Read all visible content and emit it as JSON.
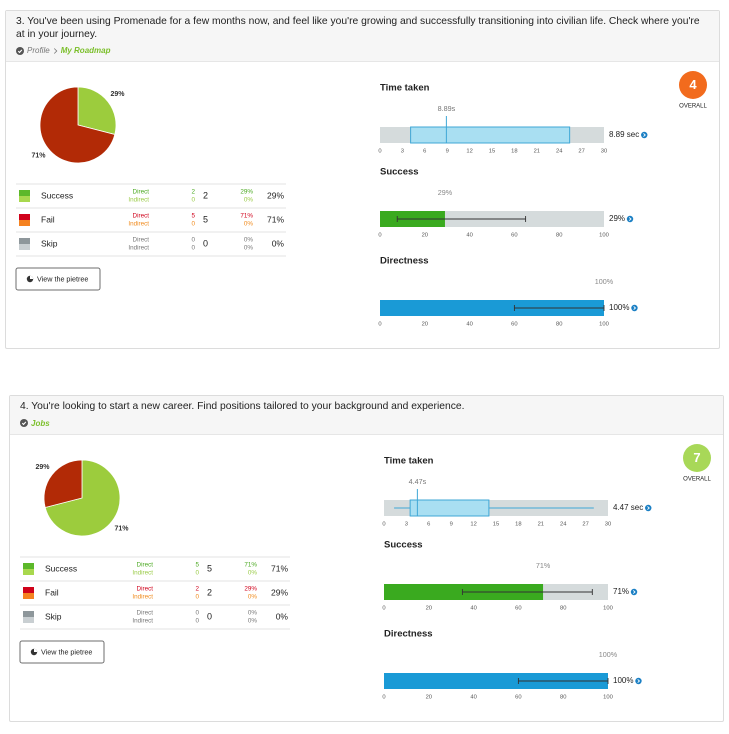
{
  "tasks": [
    {
      "question": "3. You've been using Promenade for a few months now, and feel like you're growing and successfully transitioning into civilian life. Check where you're at in your journey.",
      "breadcrumb": [
        "Profile",
        "My Roadmap"
      ],
      "pie": {
        "values": [
          29,
          71
        ],
        "value_labels": [
          "29%",
          "71%"
        ],
        "colors": [
          "#9ccc3d",
          "#b22a06"
        ]
      },
      "table": [
        {
          "name": "Success",
          "colors": [
            "#5cb82a",
            "#a8d84e"
          ],
          "text_colors": [
            "#4aa820",
            "#9acb47"
          ],
          "direct_label": "Direct",
          "indirect_label": "Indirect",
          "direct": 2,
          "indirect": 0,
          "total": 2,
          "direct_pct": "29%",
          "indirect_pct": "0%",
          "total_pct": "29%"
        },
        {
          "name": "Fail",
          "colors": [
            "#d0021b",
            "#f58220"
          ],
          "text_colors": [
            "#d0021b",
            "#f08a1c"
          ],
          "direct_label": "Direct",
          "indirect_label": "Indirect",
          "direct": 5,
          "indirect": 0,
          "total": 5,
          "direct_pct": "71%",
          "indirect_pct": "0%",
          "total_pct": "71%"
        },
        {
          "name": "Skip",
          "colors": [
            "#8e979b",
            "#c9cfd2"
          ],
          "text_colors": [
            "#777777",
            "#777777"
          ],
          "direct_label": "Direct",
          "indirect_label": "Indirect",
          "direct": 0,
          "indirect": 0,
          "total": 0,
          "direct_pct": "0%",
          "indirect_pct": "0%",
          "total_pct": "0%"
        }
      ],
      "button": "View the pietree",
      "score": {
        "value": 4,
        "label": "OVERALL",
        "color": "#f26b1d"
      },
      "time_taken": {
        "title": "Time taken",
        "xlim": [
          0,
          30
        ],
        "xticks": [
          0,
          3,
          6,
          9,
          12,
          15,
          18,
          21,
          24,
          27,
          30
        ],
        "box": {
          "q1": 4.1,
          "median": 8.89,
          "q3": 25.4
        },
        "median_label": "8.89s",
        "value_label": "8.89 sec"
      },
      "success": {
        "title": "Success",
        "xlim": [
          0,
          100
        ],
        "xticks": [
          0,
          20,
          40,
          60,
          80,
          100
        ],
        "value": 29,
        "error": [
          7.7,
          65
        ],
        "color": "#3aaa1f",
        "top_label": "29%",
        "value_label": "29%"
      },
      "directness": {
        "title": "Directness",
        "xlim": [
          0,
          100
        ],
        "xticks": [
          0,
          20,
          40,
          60,
          80,
          100
        ],
        "value": 100,
        "error": [
          60,
          100
        ],
        "color": "#1a9ad6",
        "top_label": "100%",
        "value_label": "100%"
      }
    },
    {
      "question": "4. You're looking to start a new career. Find positions tailored to your background and experience.",
      "breadcrumb": [
        "Jobs"
      ],
      "pie": {
        "values": [
          71,
          29
        ],
        "value_labels": [
          "71%",
          "29%"
        ],
        "colors": [
          "#9ccc3d",
          "#b22a06"
        ]
      },
      "table": [
        {
          "name": "Success",
          "colors": [
            "#5cb82a",
            "#a8d84e"
          ],
          "text_colors": [
            "#4aa820",
            "#9acb47"
          ],
          "direct_label": "Direct",
          "indirect_label": "Indirect",
          "direct": 5,
          "indirect": 0,
          "total": 5,
          "direct_pct": "71%",
          "indirect_pct": "0%",
          "total_pct": "71%"
        },
        {
          "name": "Fail",
          "colors": [
            "#d0021b",
            "#f58220"
          ],
          "text_colors": [
            "#d0021b",
            "#f08a1c"
          ],
          "direct_label": "Direct",
          "indirect_label": "Indirect",
          "direct": 2,
          "indirect": 0,
          "total": 2,
          "direct_pct": "29%",
          "indirect_pct": "0%",
          "total_pct": "29%"
        },
        {
          "name": "Skip",
          "colors": [
            "#8e979b",
            "#c9cfd2"
          ],
          "text_colors": [
            "#777777",
            "#777777"
          ],
          "direct_label": "Direct",
          "indirect_label": "Indirect",
          "direct": 0,
          "indirect": 0,
          "total": 0,
          "direct_pct": "0%",
          "indirect_pct": "0%",
          "total_pct": "0%"
        }
      ],
      "button": "View the pietree",
      "score": {
        "value": 7,
        "label": "OVERALL",
        "color": "#a8d858"
      },
      "time_taken": {
        "title": "Time taken",
        "xlim": [
          0,
          30
        ],
        "xticks": [
          0,
          3,
          6,
          9,
          12,
          15,
          18,
          21,
          24,
          27,
          30
        ],
        "box": {
          "whisker_low": 1.35,
          "q1": 3.5,
          "median": 4.47,
          "q3": 14.05,
          "whisker_high": 28.1
        },
        "median_label": "4.47s",
        "value_label": "4.47 sec"
      },
      "success": {
        "title": "Success",
        "xlim": [
          0,
          100
        ],
        "xticks": [
          0,
          20,
          40,
          60,
          80,
          100
        ],
        "value": 71,
        "error": [
          35,
          93
        ],
        "color": "#3aaa1f",
        "top_label": "71%",
        "value_label": "71%"
      },
      "directness": {
        "title": "Directness",
        "xlim": [
          0,
          100
        ],
        "xticks": [
          0,
          20,
          40,
          60,
          80,
          100
        ],
        "value": 100,
        "error": [
          60,
          100
        ],
        "color": "#1a9ad6",
        "top_label": "100%",
        "value_label": "100%"
      }
    }
  ]
}
